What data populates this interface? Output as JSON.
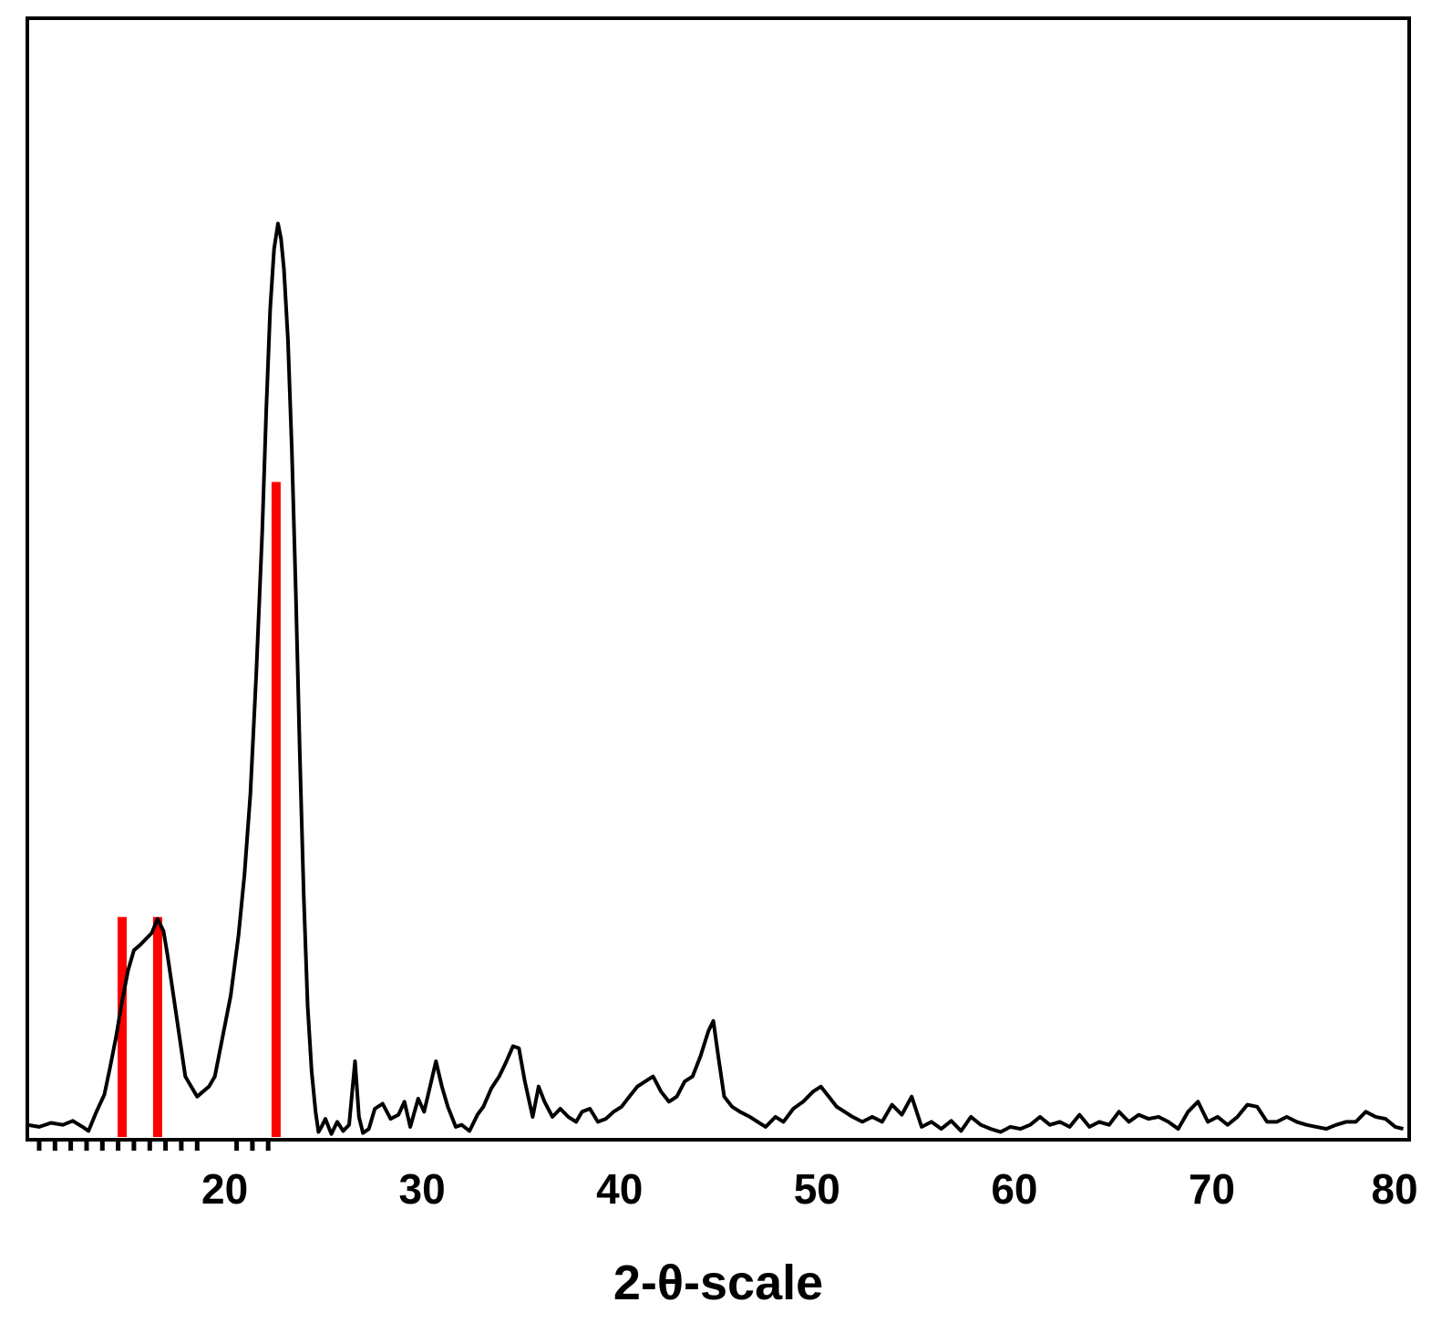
{
  "chart_data": {
    "type": "line",
    "title": "",
    "xlabel": "2-θ-scale",
    "ylabel": "",
    "xlim": [
      10,
      80
    ],
    "ylim": [
      0,
      100
    ],
    "x_ticks": [
      20,
      30,
      40,
      50,
      60,
      70,
      80
    ],
    "x_tick_labels": [
      "20",
      "30",
      "40",
      "50",
      "60",
      "70",
      "80"
    ],
    "minor_ticks": [
      10.6,
      11.4,
      12.2,
      13.0,
      13.8,
      14.6,
      15.4,
      16.2,
      17.0,
      17.8,
      18.6,
      20.6,
      21.4,
      22.2
    ],
    "grid": false,
    "legend": "none",
    "colors": {
      "pattern": "#000000",
      "reference": "#ff0000"
    },
    "series": [
      {
        "type": "line",
        "x": [
          10.0,
          10.6,
          11.2,
          11.8,
          12.3,
          12.8,
          13.1,
          13.5,
          13.9,
          14.2,
          14.5,
          14.8,
          15.1,
          15.4,
          15.7,
          16.0,
          16.3,
          16.6,
          16.9,
          17.1,
          17.4,
          17.7,
          18.0,
          18.3,
          18.6,
          18.9,
          19.2,
          19.5,
          19.9,
          20.3,
          20.7,
          21.0,
          21.3,
          21.6,
          21.9,
          22.1,
          22.3,
          22.5,
          22.7,
          22.85,
          23.0,
          23.2,
          23.4,
          23.6,
          23.8,
          24.0,
          24.2,
          24.4,
          24.6,
          24.75,
          24.9,
          25.1,
          25.4,
          25.7,
          26.0,
          26.3,
          26.6,
          26.8,
          27.0,
          27.3,
          27.6,
          28.0,
          28.4,
          28.8,
          29.1,
          29.4,
          29.8,
          30.1,
          30.4,
          30.7,
          31.0,
          31.3,
          31.7,
          32.0,
          32.4,
          32.8,
          33.1,
          33.5,
          33.9,
          34.2,
          34.6,
          34.9,
          35.2,
          35.6,
          35.9,
          36.2,
          36.6,
          37.0,
          37.4,
          37.8,
          38.1,
          38.5,
          38.9,
          39.3,
          39.7,
          40.1,
          40.5,
          40.9,
          41.3,
          41.7,
          42.1,
          42.5,
          42.9,
          43.3,
          43.7,
          44.1,
          44.5,
          44.75,
          45.0,
          45.3,
          45.7,
          46.1,
          46.6,
          47.0,
          47.4,
          47.9,
          48.3,
          48.8,
          49.3,
          49.8,
          50.2,
          50.6,
          51.0,
          51.4,
          51.8,
          52.3,
          52.8,
          53.3,
          53.8,
          54.3,
          54.8,
          55.3,
          55.8,
          56.3,
          56.8,
          57.3,
          57.8,
          58.3,
          58.8,
          59.3,
          59.8,
          60.3,
          60.8,
          61.3,
          61.8,
          62.3,
          62.8,
          63.3,
          63.8,
          64.3,
          64.8,
          65.3,
          65.8,
          66.3,
          66.8,
          67.3,
          67.8,
          68.3,
          68.8,
          69.3,
          69.8,
          70.3,
          70.8,
          71.3,
          71.8,
          72.3,
          72.8,
          73.3,
          73.8,
          74.3,
          74.8,
          75.3,
          75.8,
          76.3,
          76.8,
          77.3,
          77.8,
          78.3,
          78.8,
          79.3,
          79.7
        ],
        "y": [
          1.2,
          1.0,
          1.4,
          1.2,
          1.6,
          1.0,
          0.6,
          2.5,
          4.2,
          7.0,
          10.0,
          13.5,
          16.5,
          18.5,
          19.0,
          19.6,
          20.2,
          21.6,
          20.4,
          18.0,
          14.0,
          10.0,
          6.0,
          5.0,
          4.0,
          4.5,
          5.0,
          6.0,
          10.0,
          14.0,
          20.0,
          26.0,
          34.0,
          46.0,
          60.0,
          72.0,
          82.0,
          88.0,
          90.5,
          89.0,
          86.0,
          79.0,
          68.0,
          54.0,
          38.0,
          24.0,
          13.0,
          6.5,
          2.5,
          0.5,
          1.0,
          1.8,
          0.3,
          1.5,
          0.6,
          1.2,
          7.5,
          2.0,
          0.4,
          0.8,
          2.8,
          3.3,
          1.8,
          2.2,
          3.5,
          1.0,
          3.8,
          2.5,
          5.0,
          7.5,
          5.0,
          3.0,
          1.0,
          1.2,
          0.6,
          2.2,
          3.0,
          4.8,
          6.0,
          7.2,
          9.0,
          8.8,
          5.5,
          2.0,
          5.0,
          3.5,
          2.0,
          2.8,
          2.0,
          1.5,
          2.5,
          2.8,
          1.5,
          1.8,
          2.5,
          3.0,
          4.0,
          5.0,
          5.5,
          6.0,
          4.5,
          3.5,
          4.0,
          5.5,
          6.0,
          8.0,
          10.5,
          11.5,
          8.0,
          4.0,
          3.0,
          2.5,
          2.0,
          1.5,
          1.0,
          2.0,
          1.5,
          2.8,
          3.5,
          4.5,
          5.0,
          4.0,
          3.0,
          2.5,
          2.0,
          1.5,
          2.0,
          1.5,
          3.2,
          2.2,
          4.0,
          1.0,
          1.5,
          0.8,
          1.6,
          0.6,
          2.0,
          1.2,
          0.8,
          0.5,
          1.0,
          0.8,
          1.2,
          2.0,
          1.2,
          1.5,
          1.0,
          2.2,
          1.0,
          1.5,
          1.2,
          2.5,
          1.5,
          2.2,
          1.8,
          2.0,
          1.5,
          0.8,
          2.5,
          3.5,
          1.5,
          2.0,
          1.2,
          2.0,
          3.2,
          3.0,
          1.5,
          1.5,
          2.0,
          1.5,
          1.2,
          1.0,
          0.8,
          1.2,
          1.5,
          1.5,
          2.5,
          2.0,
          1.8,
          1.0,
          0.8
        ]
      },
      {
        "type": "stick",
        "x": [
          14.8,
          16.6,
          22.6
        ],
        "y": [
          21.8,
          21.8,
          64.9
        ]
      }
    ]
  }
}
